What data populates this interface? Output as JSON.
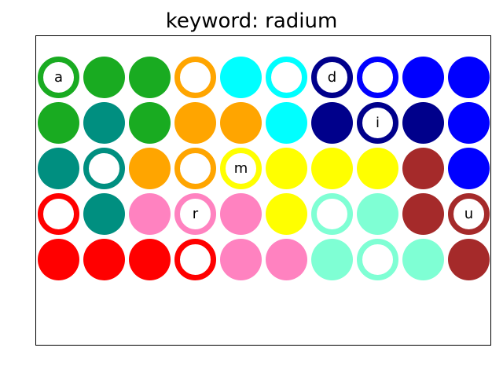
{
  "title": "keyword: radium",
  "colors": {
    "green": "#19ab21",
    "teal": "#008f80",
    "orange": "#ffa500",
    "cyan": "#00ffff",
    "navy": "#00008b",
    "blue": "#0000ff",
    "brown": "#a52a2a",
    "red": "#ff0000",
    "pink": "#ff82c0",
    "yellow": "#ffff00",
    "aquamarine": "#7fffd4"
  },
  "grid": [
    [
      {
        "color": "green",
        "ring": true,
        "letter": "a"
      },
      {
        "color": "green",
        "ring": false,
        "letter": ""
      },
      {
        "color": "green",
        "ring": false,
        "letter": ""
      },
      {
        "color": "orange",
        "ring": true,
        "letter": ""
      },
      {
        "color": "cyan",
        "ring": false,
        "letter": ""
      },
      {
        "color": "cyan",
        "ring": true,
        "letter": ""
      },
      {
        "color": "navy",
        "ring": true,
        "letter": "d"
      },
      {
        "color": "blue",
        "ring": true,
        "letter": ""
      },
      {
        "color": "blue",
        "ring": false,
        "letter": ""
      },
      {
        "color": "blue",
        "ring": false,
        "letter": ""
      }
    ],
    [
      {
        "color": "green",
        "ring": false,
        "letter": ""
      },
      {
        "color": "teal",
        "ring": false,
        "letter": ""
      },
      {
        "color": "green",
        "ring": false,
        "letter": ""
      },
      {
        "color": "orange",
        "ring": false,
        "letter": ""
      },
      {
        "color": "orange",
        "ring": false,
        "letter": ""
      },
      {
        "color": "cyan",
        "ring": false,
        "letter": ""
      },
      {
        "color": "navy",
        "ring": false,
        "letter": ""
      },
      {
        "color": "navy",
        "ring": true,
        "letter": "i"
      },
      {
        "color": "navy",
        "ring": false,
        "letter": ""
      },
      {
        "color": "blue",
        "ring": false,
        "letter": ""
      }
    ],
    [
      {
        "color": "teal",
        "ring": false,
        "letter": ""
      },
      {
        "color": "teal",
        "ring": true,
        "letter": ""
      },
      {
        "color": "orange",
        "ring": false,
        "letter": ""
      },
      {
        "color": "orange",
        "ring": true,
        "letter": ""
      },
      {
        "color": "yellow",
        "ring": true,
        "letter": "m"
      },
      {
        "color": "yellow",
        "ring": false,
        "letter": ""
      },
      {
        "color": "yellow",
        "ring": false,
        "letter": ""
      },
      {
        "color": "yellow",
        "ring": false,
        "letter": ""
      },
      {
        "color": "brown",
        "ring": false,
        "letter": ""
      },
      {
        "color": "blue",
        "ring": false,
        "letter": ""
      }
    ],
    [
      {
        "color": "red",
        "ring": true,
        "letter": ""
      },
      {
        "color": "teal",
        "ring": false,
        "letter": ""
      },
      {
        "color": "pink",
        "ring": false,
        "letter": ""
      },
      {
        "color": "pink",
        "ring": true,
        "letter": "r"
      },
      {
        "color": "pink",
        "ring": false,
        "letter": ""
      },
      {
        "color": "yellow",
        "ring": false,
        "letter": ""
      },
      {
        "color": "aquamarine",
        "ring": true,
        "letter": ""
      },
      {
        "color": "aquamarine",
        "ring": false,
        "letter": ""
      },
      {
        "color": "brown",
        "ring": false,
        "letter": ""
      },
      {
        "color": "brown",
        "ring": true,
        "letter": "u"
      }
    ],
    [
      {
        "color": "red",
        "ring": false,
        "letter": ""
      },
      {
        "color": "red",
        "ring": false,
        "letter": ""
      },
      {
        "color": "red",
        "ring": false,
        "letter": ""
      },
      {
        "color": "red",
        "ring": true,
        "letter": ""
      },
      {
        "color": "pink",
        "ring": false,
        "letter": ""
      },
      {
        "color": "pink",
        "ring": false,
        "letter": ""
      },
      {
        "color": "aquamarine",
        "ring": false,
        "letter": ""
      },
      {
        "color": "aquamarine",
        "ring": true,
        "letter": ""
      },
      {
        "color": "aquamarine",
        "ring": false,
        "letter": ""
      },
      {
        "color": "brown",
        "ring": false,
        "letter": ""
      }
    ]
  ]
}
